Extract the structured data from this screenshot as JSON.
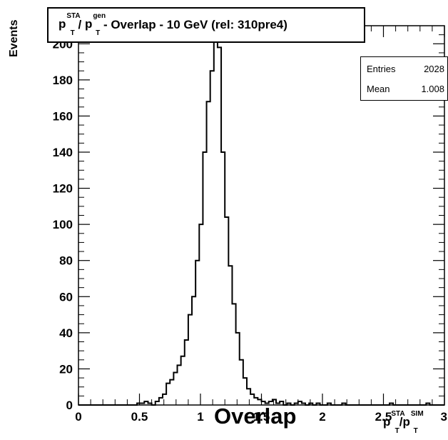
{
  "chart_data": {
    "type": "bar",
    "title": "p_T^STA / p_T^gen - Overlap - 10 GeV (rel: 310pre4)",
    "title_parts": {
      "p1": "p",
      "sup1": "STA",
      "sub1": "T",
      "slash": " / ",
      "p2": "p",
      "sup2": "gen",
      "sub2": "T",
      "rest": " - Overlap - 10 GeV (rel: 310pre4)"
    },
    "ylabel": "Events",
    "xlabel_parts": {
      "p1": "p",
      "sup1": "STA",
      "sub1": "T",
      "slash": "/",
      "p2": "p",
      "sup2": "SIM",
      "sub2": "T"
    },
    "annotation": "Overlap",
    "xlim": [
      0,
      3
    ],
    "ylim": [
      0,
      210
    ],
    "x_ticks": [
      "0",
      "0.5",
      "1",
      "1.5",
      "2",
      "2.5",
      "3"
    ],
    "y_ticks": [
      "0",
      "20",
      "40",
      "60",
      "80",
      "100",
      "120",
      "140",
      "160",
      "180",
      "200"
    ],
    "bin_width": 0.03,
    "bin_start": 0,
    "values": [
      0,
      0,
      0,
      0,
      0,
      0,
      0,
      0,
      0,
      0,
      0,
      0,
      0,
      0,
      0,
      0,
      1,
      1,
      2,
      1,
      0,
      2,
      4,
      6,
      12,
      14,
      18,
      22,
      27,
      36,
      50,
      60,
      80,
      100,
      140,
      168,
      185,
      230,
      198,
      140,
      104,
      77,
      56,
      40,
      25,
      15,
      9,
      6,
      4,
      3,
      2,
      1,
      2,
      3,
      1,
      2,
      0,
      1,
      0,
      1,
      2,
      1,
      0,
      1,
      0,
      1,
      0,
      0,
      1,
      0,
      0,
      0,
      1,
      0,
      0,
      0,
      0,
      0,
      0,
      0,
      0,
      0,
      0,
      0,
      0,
      1,
      0,
      0,
      0,
      0,
      0,
      0,
      0,
      0,
      0,
      1,
      0,
      0,
      0,
      0
    ],
    "stats": {
      "entries_label": "Entries",
      "entries_value": "2028",
      "mean_label": "Mean",
      "mean_value": "1.008"
    },
    "legend": "none",
    "grid": false
  }
}
